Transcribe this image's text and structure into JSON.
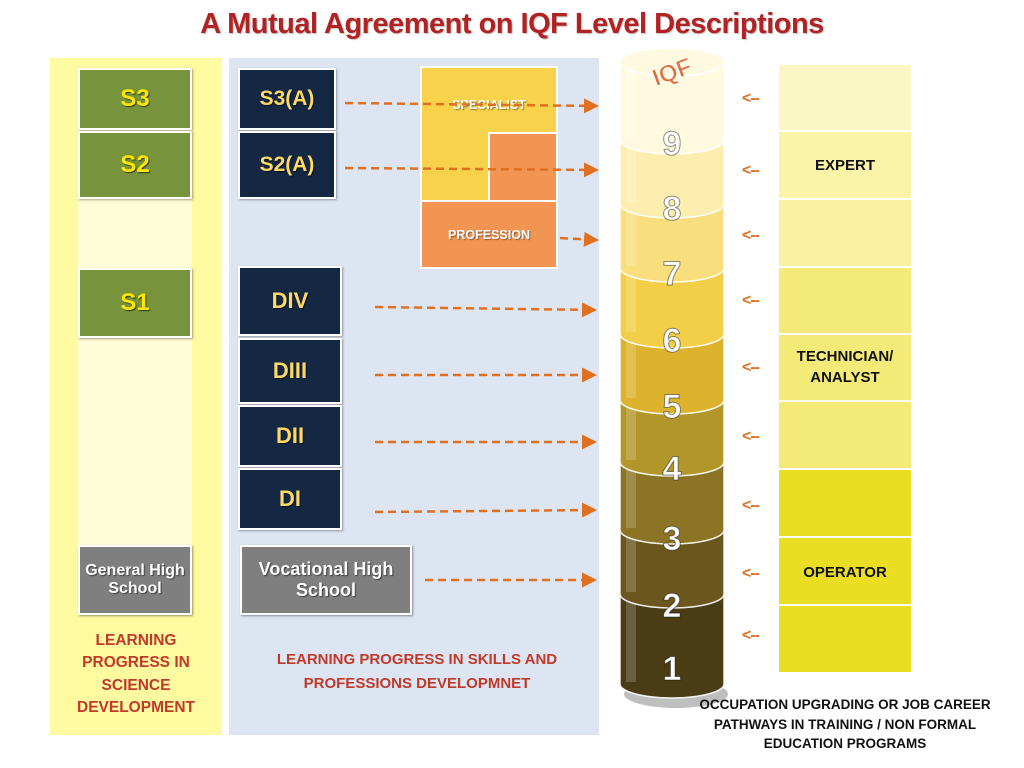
{
  "title": "A Mutual Agreement on IQF Level Descriptions",
  "science": {
    "boxes": [
      "S3",
      "S2",
      "S1"
    ],
    "base": "General High School",
    "caption": "LEARNING PROGRESS IN SCIENCE DEVELOPMENT"
  },
  "vocational": {
    "s3a": "S3(A)",
    "s2a": "S2(A)",
    "d": [
      "DIV",
      "DIII",
      "DII",
      "DI"
    ],
    "base": "Vocational High School",
    "specialist": "SPECIALIST",
    "profession": "PROFESSION",
    "caption": "LEARNING PROGRESS IN  SKILLS AND PROFESSIONS DEVELOPMNET"
  },
  "iqf": {
    "label": "IQF",
    "levels": [
      "9",
      "8",
      "7",
      "6",
      "5",
      "4",
      "3",
      "2",
      "1"
    ],
    "colors": [
      "#fffadf",
      "#fdeeb0",
      "#f8de7c",
      "#f3ce49",
      "#ddb22c",
      "#b39629",
      "#8b7524",
      "#6b561d",
      "#4a3c15"
    ]
  },
  "occupation": {
    "expert": "EXPERT",
    "technician": "TECHNICIAN/ ANALYST",
    "operator": "OPERATOR",
    "caption": "OCCUPATION UPGRADING OR JOB CAREER PATHWAYS IN TRAINING / NON FORMAL  EDUCATION PROGRAMS",
    "arrow": "<--"
  },
  "colors": {
    "title": "#b22222",
    "arrow": "#e07020",
    "science_box": "#77933c",
    "vocational_box": "#142844",
    "specialist_fill": "#f7d24a",
    "profession_fill": "#f39552"
  }
}
